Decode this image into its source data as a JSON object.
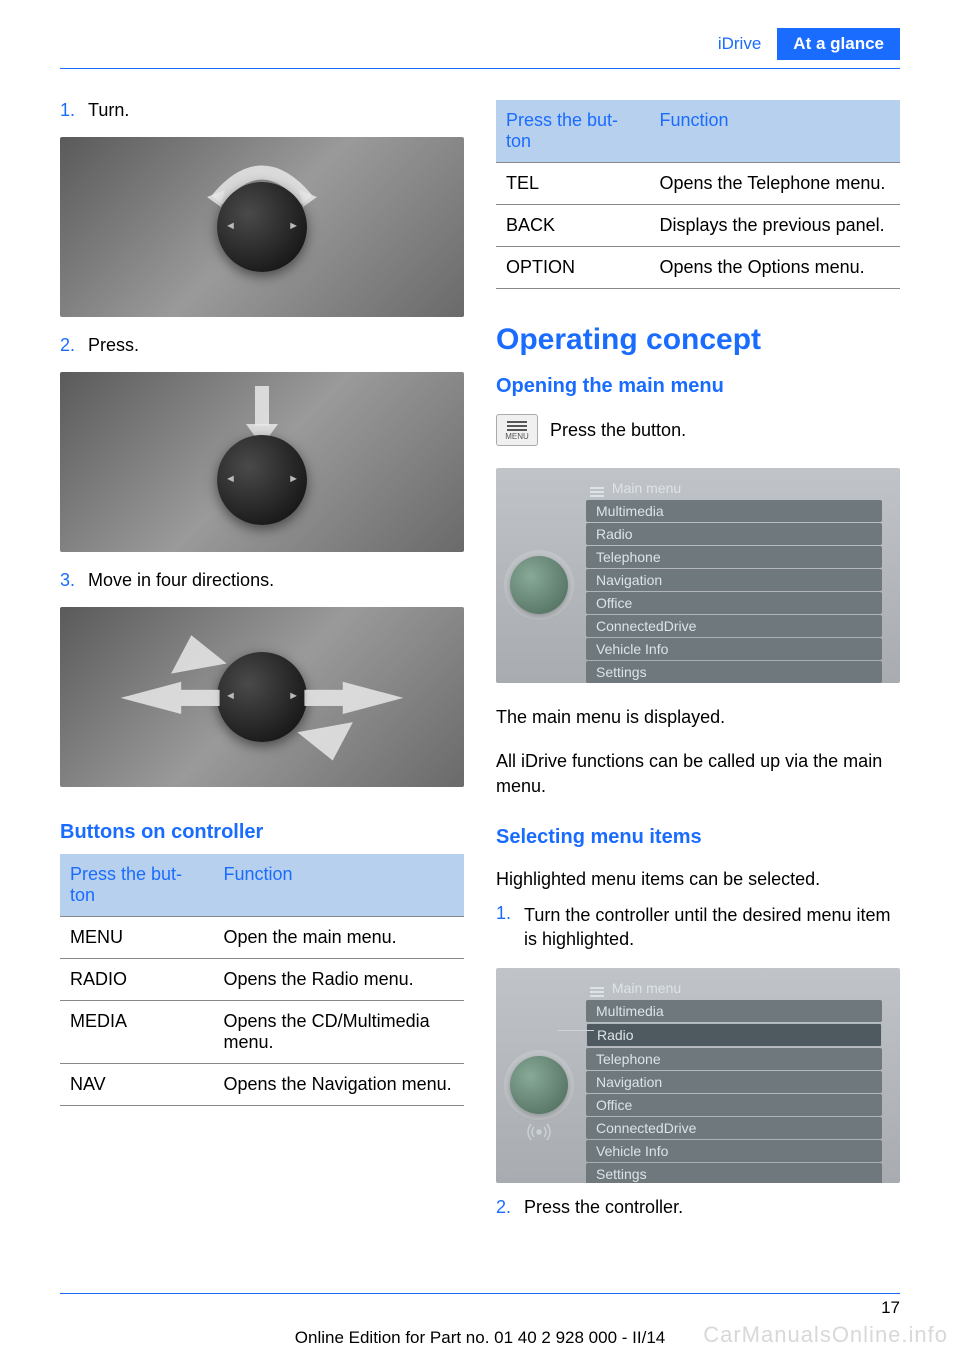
{
  "header": {
    "section": "iDrive",
    "chapter": "At a glance"
  },
  "left": {
    "steps": [
      {
        "num": "1.",
        "text": "Turn."
      },
      {
        "num": "2.",
        "text": "Press."
      },
      {
        "num": "3.",
        "text": "Move in four directions."
      }
    ],
    "buttons_title": "Buttons on controller",
    "table_header": {
      "col1": "Press the but‐\nton",
      "col2": "Function"
    },
    "table_rows": [
      {
        "btn": "MENU",
        "func": "Open the main menu."
      },
      {
        "btn": "RADIO",
        "func": "Opens the Radio menu."
      },
      {
        "btn": "MEDIA",
        "func": "Opens the CD/Multimedia menu."
      },
      {
        "btn": "NAV",
        "func": "Opens the Navigation menu."
      }
    ]
  },
  "right": {
    "table_header": {
      "col1": "Press the but‐\nton",
      "col2": "Function"
    },
    "table_rows": [
      {
        "btn": "TEL",
        "func": "Opens the Telephone menu."
      },
      {
        "btn": "BACK",
        "func": "Displays the previous panel."
      },
      {
        "btn": "OPTION",
        "func": "Opens the Options menu."
      }
    ],
    "h2": "Operating concept",
    "h3_open": "Opening the main menu",
    "menu_label": "MENU",
    "press_button": "Press the button.",
    "screen1": {
      "title": "Main menu",
      "items": [
        "Multimedia",
        "Radio",
        "Telephone",
        "Navigation",
        "Office",
        "ConnectedDrive",
        "Vehicle Info",
        "Settings"
      ]
    },
    "para1": "The main menu is displayed.",
    "para2": "All iDrive functions can be called up via the main menu.",
    "h3_select": "Selecting menu items",
    "para3": "Highlighted menu items can be selected.",
    "select_steps": [
      {
        "num": "1.",
        "text": "Turn the controller until the desired menu item is highlighted."
      }
    ],
    "screen2": {
      "title": "Main menu",
      "items": [
        "Multimedia",
        "Radio",
        "Telephone",
        "Navigation",
        "Office",
        "ConnectedDrive",
        "Vehicle Info",
        "Settings"
      ],
      "highlighted_index": 1
    },
    "select_step2": {
      "num": "2.",
      "text": "Press the controller."
    }
  },
  "footer": {
    "page": "17",
    "edition": "Online Edition for Part no. 01 40 2 928 000 - II/14",
    "watermark": "CarManualsOnline.info"
  },
  "colors": {
    "blue": "#1a6cff",
    "table_header_bg": "#b7d0ee",
    "screen_bg": "#b4b8bc",
    "screen_item_bg": "#6f787d",
    "screen_text": "#dce4e8"
  }
}
